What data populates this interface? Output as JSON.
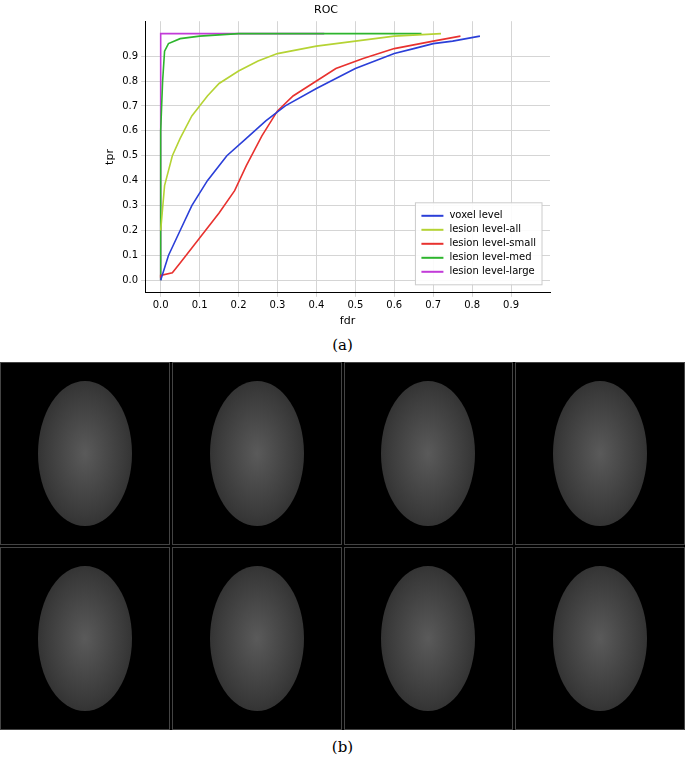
{
  "chart_data": {
    "type": "line",
    "title": "ROC",
    "x_label": "fdr",
    "y_label": "tpr",
    "xlim": [
      -0.04,
      1.0
    ],
    "ylim": [
      -0.05,
      1.04
    ],
    "xticks": [
      {
        "value": 0,
        "label": "0.0"
      },
      0.1,
      0.2,
      0.3,
      0.4,
      0.5,
      0.6,
      0.7,
      0.8,
      0.9
    ],
    "yticks": [
      {
        "value": 0,
        "label": "0.0"
      },
      0.1,
      0.2,
      0.3,
      0.4,
      0.5,
      0.6,
      0.7,
      0.8,
      0.9
    ],
    "grid": true,
    "legend": "lower right",
    "series": [
      {
        "name": "voxel level",
        "color": "#2b3fd8",
        "x": [
          0.0,
          0.02,
          0.05,
          0.08,
          0.12,
          0.17,
          0.22,
          0.27,
          0.32,
          0.4,
          0.45,
          0.5,
          0.55,
          0.6,
          0.65,
          0.7,
          0.75,
          0.82
        ],
        "values": [
          0.0,
          0.1,
          0.2,
          0.3,
          0.4,
          0.5,
          0.57,
          0.64,
          0.7,
          0.77,
          0.81,
          0.85,
          0.88,
          0.91,
          0.93,
          0.95,
          0.96,
          0.98
        ]
      },
      {
        "name": "lesion level-all",
        "color": "#b5d334",
        "x": [
          0.0,
          0.01,
          0.03,
          0.05,
          0.08,
          0.12,
          0.15,
          0.2,
          0.25,
          0.3,
          0.4,
          0.5,
          0.6,
          0.72
        ],
        "values": [
          0.2,
          0.38,
          0.5,
          0.57,
          0.66,
          0.74,
          0.79,
          0.84,
          0.88,
          0.91,
          0.94,
          0.96,
          0.98,
          0.99
        ]
      },
      {
        "name": "lesion level-small",
        "color": "#e8322f",
        "x": [
          0.0,
          0.0,
          0.03,
          0.05,
          0.1,
          0.15,
          0.19,
          0.22,
          0.26,
          0.3,
          0.34,
          0.4,
          0.45,
          0.52,
          0.6,
          0.7,
          0.77
        ],
        "values": [
          0.01,
          0.02,
          0.03,
          0.07,
          0.17,
          0.27,
          0.36,
          0.46,
          0.58,
          0.68,
          0.74,
          0.8,
          0.85,
          0.89,
          0.93,
          0.96,
          0.98
        ]
      },
      {
        "name": "lesion level-med",
        "color": "#2db52d",
        "x": [
          0.0,
          0.0,
          0.005,
          0.01,
          0.02,
          0.05,
          0.1,
          0.2,
          0.4,
          0.67
        ],
        "values": [
          0.0,
          0.6,
          0.8,
          0.92,
          0.95,
          0.97,
          0.98,
          0.99,
          0.99,
          0.99
        ]
      },
      {
        "name": "lesion level-large",
        "color": "#c23bd8",
        "x": [
          0.0,
          0.0,
          0.42
        ],
        "values": [
          0.0,
          0.99,
          0.99
        ]
      }
    ]
  },
  "captions": {
    "a": "(a)",
    "b": "(b)"
  }
}
